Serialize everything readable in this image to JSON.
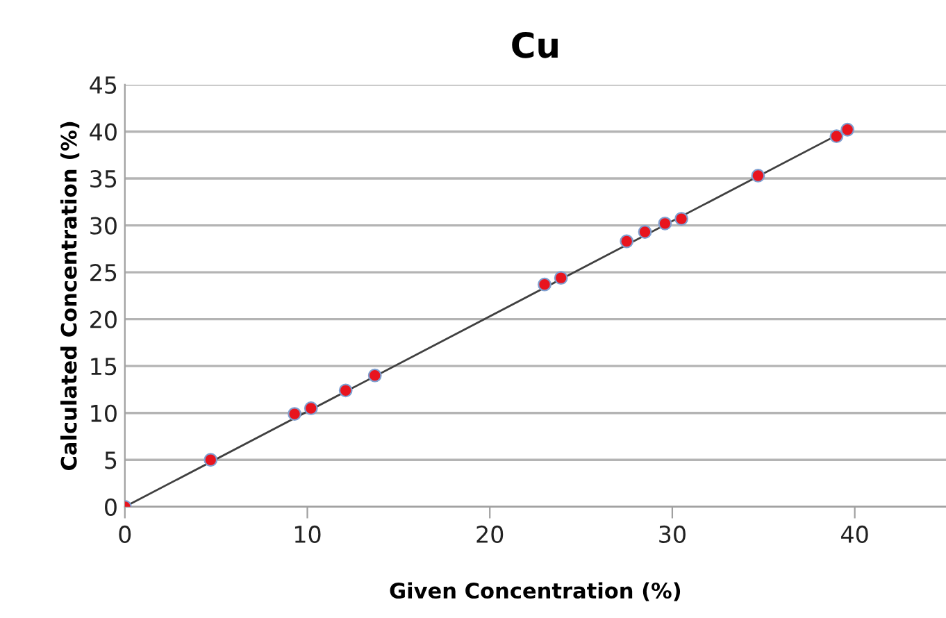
{
  "chart_data": {
    "type": "scatter",
    "title": "Cu",
    "xlabel": "Given Concentration (%)",
    "ylabel": "Calculated Concentration (%)",
    "xlim": [
      0,
      45
    ],
    "xticks": [
      0,
      10,
      20,
      30,
      40
    ],
    "ylim": [
      0,
      45
    ],
    "yticks": [
      0,
      5,
      10,
      15,
      20,
      25,
      30,
      35,
      40,
      45
    ],
    "grid": "y",
    "series": [
      {
        "marker": "circle",
        "color": "#e8141e",
        "x": [
          0,
          4.7,
          9.3,
          10.2,
          12.1,
          13.7,
          23.0,
          23.9,
          27.5,
          28.5,
          29.6,
          30.5,
          34.7,
          39.0,
          39.6
        ],
        "values": [
          0,
          5.0,
          9.9,
          10.5,
          12.4,
          14.0,
          23.7,
          24.4,
          28.3,
          29.3,
          30.2,
          30.7,
          35.3,
          39.5,
          40.2
        ]
      },
      {
        "type": "line",
        "color": "#404040",
        "line_style": "solid",
        "x": [
          0,
          39.6
        ],
        "values": [
          0,
          40.2
        ]
      }
    ]
  }
}
